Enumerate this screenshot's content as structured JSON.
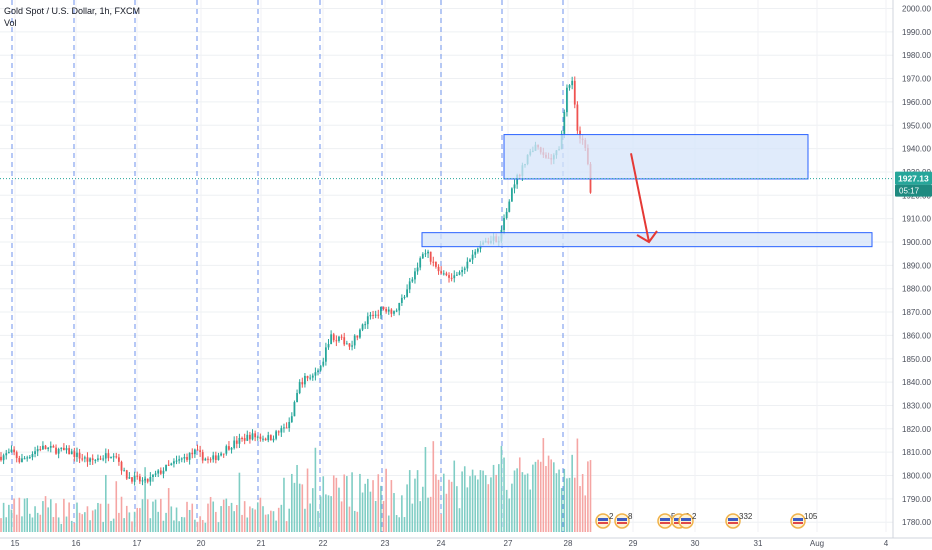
{
  "symbol_title": "Gold Spot / U.S. Dollar, 1h, FXCM",
  "volume_label": "Vol",
  "colors": {
    "up": "#26a69a",
    "down": "#ef5350",
    "up_vol": "#7fcdc4",
    "down_vol": "#f5a5a3",
    "zone_fill": "#d6e4fa",
    "zone_stroke": "#2962ff",
    "arrow": "#e53935",
    "price_line": "#26a69a",
    "session_line": "#4a78e8"
  },
  "price_axis": {
    "ticks": [
      "2000.00",
      "1990.00",
      "1980.00",
      "1970.00",
      "1960.00",
      "1950.00",
      "1940.00",
      "1930.00",
      "1920.00",
      "1910.00",
      "1900.00",
      "1890.00",
      "1880.00",
      "1870.00",
      "1860.00",
      "1850.00",
      "1840.00",
      "1830.00",
      "1820.00",
      "1810.00",
      "1800.00",
      "1790.00",
      "1780.00"
    ],
    "current_price": "1927.13",
    "countdown": "05:17"
  },
  "time_axis": {
    "labels": [
      "15",
      "16",
      "17",
      "20",
      "21",
      "22",
      "23",
      "24",
      "27",
      "28",
      "29",
      "30",
      "31",
      "Aug",
      "4"
    ]
  },
  "events": [
    {
      "count": "2",
      "icon": "us-flag-icon"
    },
    {
      "count": "8",
      "icon": "us-flag-icon"
    },
    {
      "count": "5",
      "icon": "us-flag-icon"
    },
    {
      "count": "6",
      "icon": "us-flag-icon"
    },
    {
      "count": "2",
      "icon": "us-flag-icon"
    },
    {
      "count": "332",
      "icon": "us-flag-icon"
    },
    {
      "count": "105",
      "icon": "us-flag-icon"
    }
  ],
  "chart_data": {
    "type": "candlestick",
    "title": "Gold Spot / U.S. Dollar, 1h, FXCM",
    "ylim": [
      1776,
      2006
    ],
    "close_path": [
      [
        0,
        1808
      ],
      [
        13,
        1810
      ],
      [
        20,
        1806
      ],
      [
        40,
        1812
      ],
      [
        70,
        1810
      ],
      [
        90,
        1806
      ],
      [
        115,
        1810
      ],
      [
        125,
        1800
      ],
      [
        145,
        1797
      ],
      [
        165,
        1803
      ],
      [
        195,
        1810
      ],
      [
        210,
        1806
      ],
      [
        230,
        1813
      ],
      [
        250,
        1817
      ],
      [
        270,
        1816
      ],
      [
        290,
        1822
      ],
      [
        300,
        1840
      ],
      [
        320,
        1845
      ],
      [
        330,
        1860
      ],
      [
        350,
        1856
      ],
      [
        370,
        1868
      ],
      [
        385,
        1872
      ],
      [
        395,
        1870
      ],
      [
        410,
        1882
      ],
      [
        425,
        1897
      ],
      [
        440,
        1886
      ],
      [
        460,
        1886
      ],
      [
        475,
        1895
      ],
      [
        485,
        1900
      ],
      [
        500,
        1902
      ],
      [
        510,
        1920
      ],
      [
        520,
        1930
      ],
      [
        535,
        1942
      ],
      [
        550,
        1935
      ],
      [
        560,
        1940
      ],
      [
        567,
        1965
      ],
      [
        572,
        1970
      ],
      [
        578,
        1946
      ],
      [
        583,
        1944
      ],
      [
        587,
        1940
      ],
      [
        590,
        1918
      ],
      [
        592,
        1925
      ],
      [
        594,
        1927
      ]
    ],
    "zones": [
      {
        "x0": 504,
        "x1": 808,
        "y_top": 1946,
        "y_bottom": 1927
      },
      {
        "x0": 422,
        "x1": 872,
        "y_top": 1904,
        "y_bottom": 1898
      }
    ],
    "forecast_arrow": {
      "from": [
        631,
        1938
      ],
      "to": [
        649,
        1900
      ]
    },
    "current_price": 1927.13
  }
}
